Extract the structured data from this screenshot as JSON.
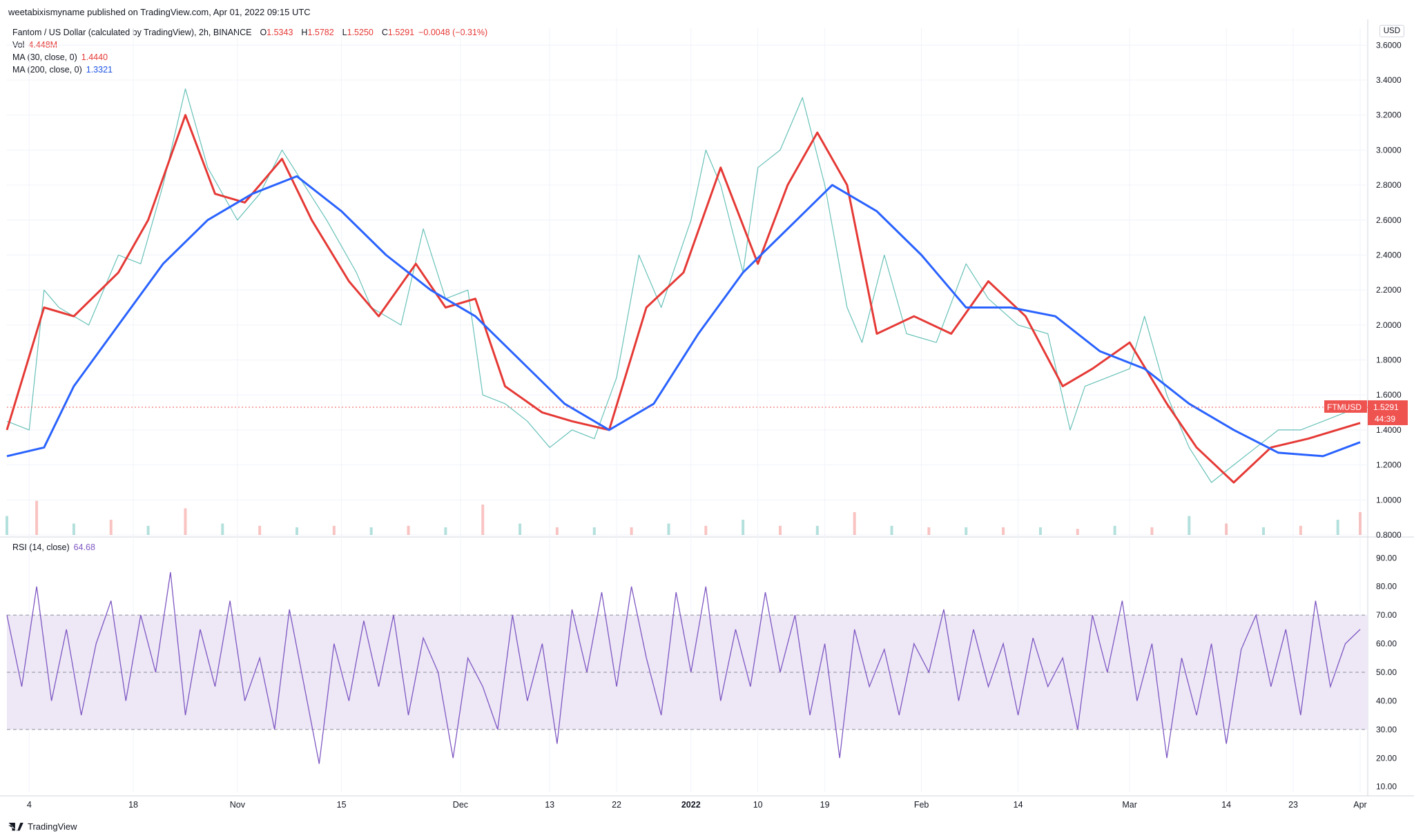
{
  "header": {
    "published_text": "weetabixismyname published on TradingView.com, Apr 01, 2022 09:15 UTC"
  },
  "legend": {
    "title": "Fantom / US Dollar (calculated by TradingView), 2h, BINANCE",
    "ohlc": [
      {
        "key": "O",
        "value": "1.5343"
      },
      {
        "key": "H",
        "value": "1.5782"
      },
      {
        "key": "L",
        "value": "1.5250"
      },
      {
        "key": "C",
        "value": "1.5291"
      }
    ],
    "change": "−0.0048 (−0.31%)",
    "vol_label": "Vol",
    "vol_value": "4.448M",
    "ma30_label": "MA (30, close, 0)",
    "ma30_value": "1.4440",
    "ma200_label": "MA (200, close, 0)",
    "ma200_value": "1.3321"
  },
  "rsi_legend": {
    "label": "RSI (14, close)",
    "value": "64.68"
  },
  "price_tag": {
    "symbol": "FTMUSD",
    "price": "1.5291",
    "countdown": "44:39"
  },
  "currency_label": "USD",
  "branding": "TradingView",
  "colors": {
    "up": "#26a69a",
    "down": "#ef5350",
    "ma30": "#e53935",
    "ma200": "#2962ff",
    "rsi": "#7e57c2",
    "rsi_band": "#ede7f6"
  },
  "chart_data": [
    {
      "type": "line",
      "title": "Fantom / US Dollar (calculated by TradingView), 2h, BINANCE",
      "x_ticks": [
        "4",
        "18",
        "Nov",
        "15",
        "Dec",
        "13",
        "22",
        "2022",
        "10",
        "19",
        "Feb",
        "14",
        "Mar",
        "14",
        "23",
        "Apr"
      ],
      "y_ticks": [
        "3.6000",
        "3.4000",
        "3.2000",
        "3.0000",
        "2.8000",
        "2.6000",
        "2.4000",
        "2.2000",
        "2.0000",
        "1.8000",
        "1.6000",
        "1.4000",
        "1.2000",
        "1.0000",
        "0.8000"
      ],
      "ylim": [
        0.8,
        3.7
      ],
      "series": [
        {
          "name": "FTMUSD",
          "x": [
            "2021-10-01",
            "2021-10-04",
            "2021-10-06",
            "2021-10-08",
            "2021-10-12",
            "2021-10-16",
            "2021-10-19",
            "2021-10-22",
            "2021-10-25",
            "2021-10-28",
            "2021-11-01",
            "2021-11-04",
            "2021-11-07",
            "2021-11-10",
            "2021-11-13",
            "2021-11-17",
            "2021-11-19",
            "2021-11-23",
            "2021-11-26",
            "2021-11-29",
            "2021-12-02",
            "2021-12-04",
            "2021-12-07",
            "2021-12-10",
            "2021-12-13",
            "2021-12-16",
            "2021-12-19",
            "2021-12-22",
            "2021-12-25",
            "2021-12-28",
            "2022-01-01",
            "2022-01-03",
            "2022-01-05",
            "2022-01-08",
            "2022-01-10",
            "2022-01-13",
            "2022-01-16",
            "2022-01-19",
            "2022-01-22",
            "2022-01-24",
            "2022-01-27",
            "2022-01-30",
            "2022-02-03",
            "2022-02-07",
            "2022-02-10",
            "2022-02-14",
            "2022-02-18",
            "2022-02-21",
            "2022-02-23",
            "2022-02-26",
            "2022-03-01",
            "2022-03-03",
            "2022-03-06",
            "2022-03-09",
            "2022-03-12",
            "2022-03-15",
            "2022-03-18",
            "2022-03-21",
            "2022-03-24",
            "2022-03-27",
            "2022-03-30",
            "2022-04-01"
          ],
          "values": [
            1.45,
            1.4,
            2.2,
            2.1,
            2.0,
            2.4,
            2.35,
            2.8,
            3.35,
            2.9,
            2.6,
            2.75,
            3.0,
            2.8,
            2.6,
            2.3,
            2.1,
            2.0,
            2.55,
            2.15,
            2.2,
            1.6,
            1.55,
            1.45,
            1.3,
            1.4,
            1.35,
            1.7,
            2.4,
            2.1,
            2.6,
            3.0,
            2.8,
            2.3,
            2.9,
            3.0,
            3.3,
            2.8,
            2.1,
            1.9,
            2.4,
            1.95,
            1.9,
            2.35,
            2.15,
            2.0,
            1.95,
            1.4,
            1.65,
            1.7,
            1.75,
            2.05,
            1.6,
            1.3,
            1.1,
            1.2,
            1.3,
            1.4,
            1.4,
            1.45,
            1.5,
            1.53
          ]
        },
        {
          "name": "MA (30, close, 0)",
          "x": [
            "2021-10-01",
            "2021-10-06",
            "2021-10-10",
            "2021-10-16",
            "2021-10-20",
            "2021-10-25",
            "2021-10-29",
            "2021-11-02",
            "2021-11-07",
            "2021-11-11",
            "2021-11-16",
            "2021-11-20",
            "2021-11-25",
            "2021-11-29",
            "2021-12-03",
            "2021-12-07",
            "2021-12-12",
            "2021-12-16",
            "2021-12-21",
            "2021-12-26",
            "2021-12-31",
            "2022-01-05",
            "2022-01-10",
            "2022-01-14",
            "2022-01-18",
            "2022-01-22",
            "2022-01-26",
            "2022-01-31",
            "2022-02-05",
            "2022-02-10",
            "2022-02-15",
            "2022-02-20",
            "2022-02-24",
            "2022-03-01",
            "2022-03-06",
            "2022-03-10",
            "2022-03-15",
            "2022-03-20",
            "2022-03-25",
            "2022-04-01"
          ],
          "values": [
            1.4,
            2.1,
            2.05,
            2.3,
            2.6,
            3.2,
            2.75,
            2.7,
            2.95,
            2.6,
            2.25,
            2.05,
            2.35,
            2.1,
            2.15,
            1.65,
            1.5,
            1.45,
            1.4,
            2.1,
            2.3,
            2.9,
            2.35,
            2.8,
            3.1,
            2.8,
            1.95,
            2.05,
            1.95,
            2.25,
            2.05,
            1.65,
            1.75,
            1.9,
            1.55,
            1.3,
            1.1,
            1.3,
            1.35,
            1.44
          ]
        },
        {
          "name": "MA (200, close, 0)",
          "x": [
            "2021-10-01",
            "2021-10-06",
            "2021-10-10",
            "2021-10-16",
            "2021-10-22",
            "2021-10-28",
            "2021-11-03",
            "2021-11-09",
            "2021-11-15",
            "2021-11-21",
            "2021-11-27",
            "2021-12-03",
            "2021-12-09",
            "2021-12-15",
            "2021-12-21",
            "2021-12-27",
            "2022-01-02",
            "2022-01-08",
            "2022-01-14",
            "2022-01-20",
            "2022-01-26",
            "2022-02-01",
            "2022-02-07",
            "2022-02-13",
            "2022-02-19",
            "2022-02-25",
            "2022-03-03",
            "2022-03-09",
            "2022-03-15",
            "2022-03-21",
            "2022-03-27",
            "2022-04-01"
          ],
          "values": [
            1.25,
            1.3,
            1.65,
            2.0,
            2.35,
            2.6,
            2.75,
            2.85,
            2.65,
            2.4,
            2.2,
            2.05,
            1.8,
            1.55,
            1.4,
            1.55,
            1.95,
            2.3,
            2.55,
            2.8,
            2.65,
            2.4,
            2.1,
            2.1,
            2.05,
            1.85,
            1.75,
            1.55,
            1.4,
            1.27,
            1.25,
            1.33
          ]
        }
      ]
    },
    {
      "type": "bar",
      "title": "Vol",
      "x": [
        "2021-10-01",
        "2021-10-05",
        "2021-10-10",
        "2021-10-15",
        "2021-10-20",
        "2021-10-25",
        "2021-10-30",
        "2021-11-04",
        "2021-11-09",
        "2021-11-14",
        "2021-11-19",
        "2021-11-24",
        "2021-11-29",
        "2021-12-04",
        "2021-12-09",
        "2021-12-14",
        "2021-12-19",
        "2021-12-24",
        "2021-12-29",
        "2022-01-03",
        "2022-01-08",
        "2022-01-13",
        "2022-01-18",
        "2022-01-23",
        "2022-01-28",
        "2022-02-02",
        "2022-02-07",
        "2022-02-12",
        "2022-02-17",
        "2022-02-22",
        "2022-02-27",
        "2022-03-04",
        "2022-03-09",
        "2022-03-14",
        "2022-03-19",
        "2022-03-24",
        "2022-03-29",
        "2022-04-01"
      ],
      "values": [
        0.25,
        0.45,
        0.15,
        0.2,
        0.12,
        0.35,
        0.15,
        0.12,
        0.1,
        0.12,
        0.1,
        0.12,
        0.1,
        0.4,
        0.15,
        0.1,
        0.1,
        0.1,
        0.15,
        0.12,
        0.2,
        0.12,
        0.12,
        0.3,
        0.12,
        0.1,
        0.1,
        0.1,
        0.1,
        0.08,
        0.12,
        0.1,
        0.25,
        0.15,
        0.1,
        0.12,
        0.2,
        0.3
      ]
    },
    {
      "type": "line",
      "title": "RSI (14, close)",
      "y_ticks": [
        "90.00",
        "80.00",
        "70.00",
        "60.00",
        "50.00",
        "40.00",
        "30.00",
        "20.00",
        "10.00"
      ],
      "ylim": [
        8,
        92
      ],
      "bands": [
        30,
        50,
        70
      ],
      "series": [
        {
          "name": "RSI (14, close)",
          "x": [
            "2021-10-01",
            "2021-10-03",
            "2021-10-05",
            "2021-10-07",
            "2021-10-09",
            "2021-10-11",
            "2021-10-13",
            "2021-10-15",
            "2021-10-17",
            "2021-10-19",
            "2021-10-21",
            "2021-10-23",
            "2021-10-25",
            "2021-10-27",
            "2021-10-29",
            "2021-10-31",
            "2021-11-02",
            "2021-11-04",
            "2021-11-06",
            "2021-11-08",
            "2021-11-10",
            "2021-11-12",
            "2021-11-14",
            "2021-11-16",
            "2021-11-18",
            "2021-11-20",
            "2021-11-22",
            "2021-11-24",
            "2021-11-26",
            "2021-11-28",
            "2021-11-30",
            "2021-12-02",
            "2021-12-04",
            "2021-12-06",
            "2021-12-08",
            "2021-12-10",
            "2021-12-12",
            "2021-12-14",
            "2021-12-16",
            "2021-12-18",
            "2021-12-20",
            "2021-12-22",
            "2021-12-24",
            "2021-12-26",
            "2021-12-28",
            "2021-12-30",
            "2022-01-01",
            "2022-01-03",
            "2022-01-05",
            "2022-01-07",
            "2022-01-09",
            "2022-01-11",
            "2022-01-13",
            "2022-01-15",
            "2022-01-17",
            "2022-01-19",
            "2022-01-21",
            "2022-01-23",
            "2022-01-25",
            "2022-01-27",
            "2022-01-29",
            "2022-01-31",
            "2022-02-02",
            "2022-02-04",
            "2022-02-06",
            "2022-02-08",
            "2022-02-10",
            "2022-02-12",
            "2022-02-14",
            "2022-02-16",
            "2022-02-18",
            "2022-02-20",
            "2022-02-22",
            "2022-02-24",
            "2022-02-26",
            "2022-02-28",
            "2022-03-02",
            "2022-03-04",
            "2022-03-06",
            "2022-03-08",
            "2022-03-10",
            "2022-03-12",
            "2022-03-14",
            "2022-03-16",
            "2022-03-18",
            "2022-03-20",
            "2022-03-22",
            "2022-03-24",
            "2022-03-26",
            "2022-03-28",
            "2022-03-30",
            "2022-04-01"
          ],
          "values": [
            70,
            45,
            80,
            40,
            65,
            35,
            60,
            75,
            40,
            70,
            50,
            85,
            35,
            65,
            45,
            75,
            40,
            55,
            30,
            72,
            45,
            18,
            60,
            40,
            68,
            45,
            70,
            35,
            62,
            50,
            20,
            55,
            45,
            30,
            70,
            40,
            60,
            25,
            72,
            50,
            78,
            45,
            80,
            55,
            35,
            78,
            50,
            80,
            40,
            65,
            45,
            78,
            50,
            70,
            35,
            60,
            20,
            65,
            45,
            58,
            35,
            60,
            50,
            72,
            40,
            65,
            45,
            60,
            35,
            62,
            45,
            55,
            30,
            70,
            50,
            75,
            40,
            60,
            20,
            55,
            35,
            60,
            25,
            58,
            70,
            45,
            65,
            35,
            75,
            45,
            60,
            65
          ]
        }
      ]
    }
  ]
}
